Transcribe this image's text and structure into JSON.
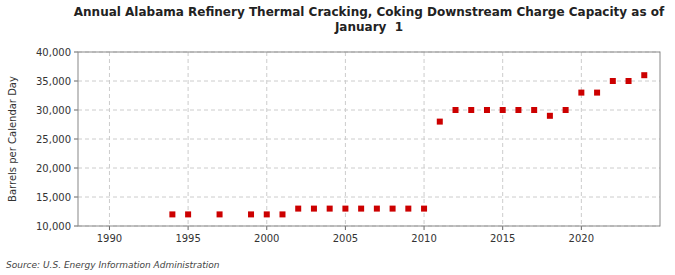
{
  "chart_data": {
    "type": "scatter",
    "title": "Annual Alabama Refinery Thermal Cracking, Coking Downstream Charge Capacity as of\nJanuary  1",
    "ylabel": "Barrels per Calendar Day",
    "source": "Source: U.S. Energy Information Administration",
    "color": "#cc0000",
    "marker": "square",
    "grid": true,
    "xlim": [
      1988,
      2025
    ],
    "ylim": [
      10000,
      40000
    ],
    "xticks": [
      1990,
      1995,
      2000,
      2005,
      2010,
      2015,
      2020
    ],
    "yticks": [
      {
        "value": 10000,
        "label": "10,000"
      },
      {
        "value": 15000,
        "label": "15,000"
      },
      {
        "value": 20000,
        "label": "20,000"
      },
      {
        "value": 25000,
        "label": "25,000"
      },
      {
        "value": 30000,
        "label": "30,000"
      },
      {
        "value": 35000,
        "label": "35,000"
      },
      {
        "value": 40000,
        "label": "40,000"
      }
    ],
    "x": [
      1994,
      1995,
      1997,
      1999,
      2000,
      2001,
      2002,
      2003,
      2004,
      2005,
      2006,
      2007,
      2008,
      2009,
      2010,
      2011,
      2012,
      2013,
      2014,
      2015,
      2016,
      2017,
      2018,
      2019,
      2020,
      2021,
      2022,
      2023,
      2024
    ],
    "values": [
      12000,
      12000,
      12000,
      12000,
      12000,
      12000,
      13000,
      13000,
      13000,
      13000,
      13000,
      13000,
      13000,
      13000,
      13000,
      28000,
      30000,
      30000,
      30000,
      30000,
      30000,
      30000,
      29000,
      30000,
      33000,
      33000,
      35000,
      35000,
      36000
    ]
  }
}
